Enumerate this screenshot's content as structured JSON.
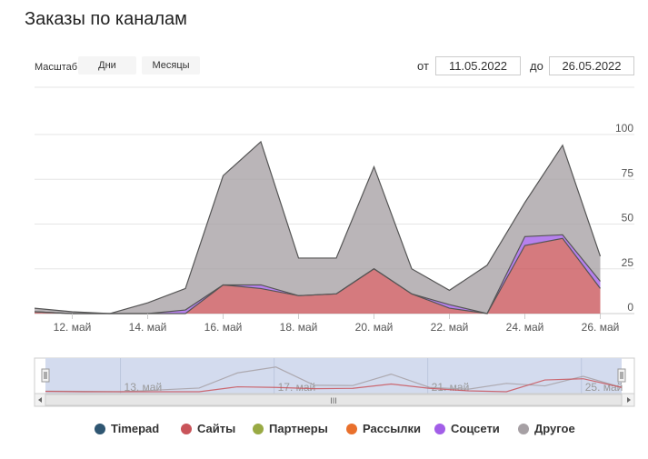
{
  "title": "Заказы по каналам",
  "controls": {
    "zoom_label": "Масштаб",
    "zoom_buttons": [
      "Дни",
      "Месяцы"
    ],
    "from_label": "от",
    "from_value": "11.05.2022",
    "to_label": "до",
    "to_value": "26.05.2022"
  },
  "navigator": {
    "tick_labels": [
      "13. май",
      "17. май",
      "21. май",
      "25. май"
    ],
    "scrollbar_grip": "III"
  },
  "chart_data": {
    "type": "area",
    "stacked": true,
    "x_tick_labels": [
      "12. май",
      "14. май",
      "16. май",
      "18. май",
      "20. май",
      "22. май",
      "24. май",
      "26. май"
    ],
    "x": [
      "11.05",
      "12.05",
      "13.05",
      "14.05",
      "15.05",
      "16.05",
      "17.05",
      "18.05",
      "19.05",
      "20.05",
      "21.05",
      "22.05",
      "23.05",
      "24.05",
      "25.05",
      "26.05"
    ],
    "ylim": [
      0,
      100
    ],
    "y_ticks": [
      0,
      25,
      50,
      75,
      100
    ],
    "legend_position": "bottom",
    "grid": true,
    "series": [
      {
        "name": "Timepad",
        "color": "#2f5672",
        "values": [
          0,
          0,
          0,
          0,
          0,
          0,
          0,
          0,
          0,
          0,
          0,
          0,
          0,
          0,
          0,
          0
        ]
      },
      {
        "name": "Сайты",
        "color": "#c9545a",
        "values": [
          1,
          0,
          0,
          0,
          0,
          16,
          14,
          10,
          11,
          25,
          11,
          3,
          0,
          38,
          42,
          14
        ]
      },
      {
        "name": "Партнеры",
        "color": "#99aa44",
        "values": [
          0,
          0,
          0,
          0,
          0,
          0,
          0,
          0,
          0,
          0,
          0,
          0,
          0,
          0,
          0,
          0
        ]
      },
      {
        "name": "Рассылки",
        "color": "#e9702c",
        "values": [
          0,
          0,
          0,
          0,
          0,
          0,
          0,
          0,
          0,
          0,
          0,
          0,
          0,
          0,
          0,
          0
        ]
      },
      {
        "name": "Соцсети",
        "color": "#a25ee8",
        "values": [
          0,
          0,
          0,
          0,
          2,
          0,
          2,
          0,
          0,
          0,
          0,
          2,
          0,
          5,
          2,
          4
        ]
      },
      {
        "name": "Другое",
        "color": "#a6a0a4",
        "values": [
          2,
          1,
          0,
          6,
          12,
          61,
          80,
          21,
          20,
          57,
          14,
          8,
          27,
          19,
          50,
          14
        ]
      }
    ]
  }
}
